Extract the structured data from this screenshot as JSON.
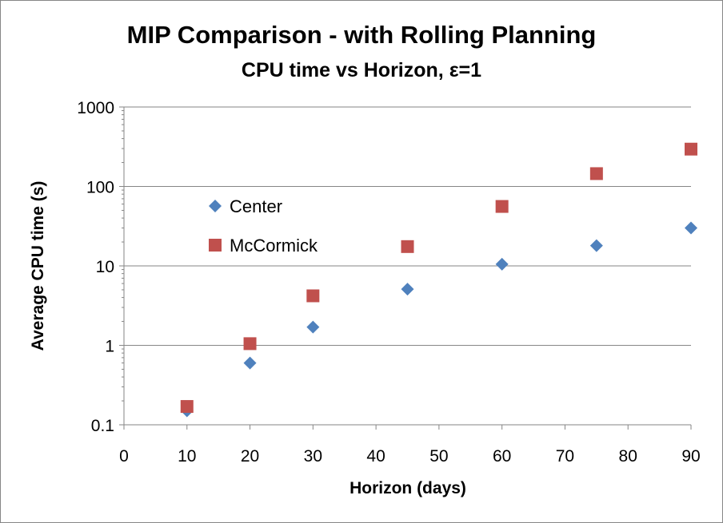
{
  "chart_data": {
    "type": "scatter",
    "title": "MIP Comparison - with Rolling Planning",
    "subtitle": "CPU time vs Horizon, ε=1",
    "xlabel": "Horizon (days)",
    "ylabel": "Average CPU time (s)",
    "xlim": [
      0,
      90
    ],
    "ylim": [
      0.1,
      1000
    ],
    "yscale": "log",
    "x_ticks": [
      "0",
      "10",
      "20",
      "30",
      "40",
      "50",
      "60",
      "70",
      "80",
      "90"
    ],
    "y_ticks": [
      "0.1",
      "1",
      "10",
      "100",
      "1000"
    ],
    "grid": "horizontal",
    "legend_position": "inside-left",
    "series": [
      {
        "name": "Center",
        "marker": "diamond",
        "color": "#4F81BD",
        "x": [
          10,
          20,
          30,
          45,
          60,
          75,
          90
        ],
        "y": [
          0.15,
          0.6,
          1.7,
          5.1,
          10.5,
          18,
          30
        ]
      },
      {
        "name": "McCormick",
        "marker": "square",
        "color": "#C0504D",
        "x": [
          10,
          20,
          30,
          45,
          60,
          75,
          90
        ],
        "y": [
          0.17,
          1.05,
          4.2,
          17.5,
          56,
          145,
          295
        ]
      }
    ]
  }
}
